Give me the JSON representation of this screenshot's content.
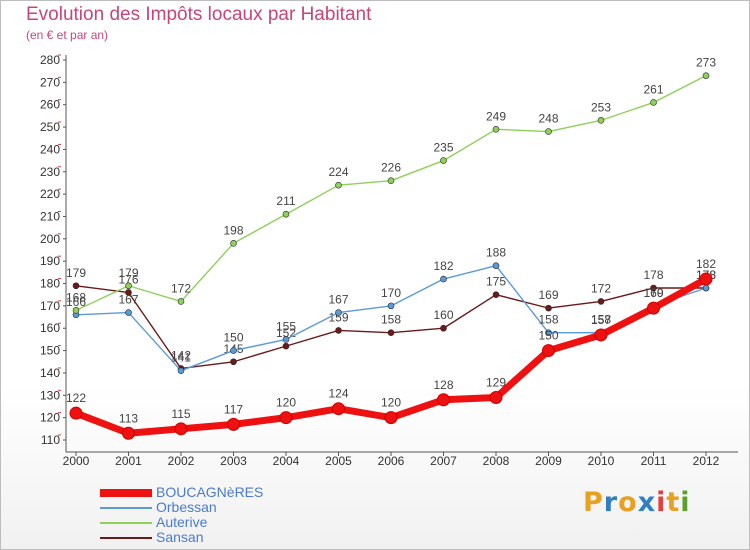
{
  "header": {
    "title": "Evolution des Impôts locaux par Habitant",
    "subtitle": "(en € et par an)"
  },
  "logo": {
    "text": "Proxiti",
    "letters": [
      {
        "ch": "P",
        "color": "#e8a020"
      },
      {
        "ch": "r",
        "color": "#2f7fc1"
      },
      {
        "ch": "o",
        "color": "#e8a020"
      },
      {
        "ch": "x",
        "color": "#2f7fc1"
      },
      {
        "ch": "i",
        "color": "#e04040"
      },
      {
        "ch": "t",
        "color": "#e8a020"
      },
      {
        "ch": "i",
        "color": "#5aa02a"
      }
    ]
  },
  "chart_data": {
    "type": "line",
    "title": "Evolution des Impôts locaux par Habitant",
    "subtitle": "(en € et par an)",
    "xlabel": "",
    "ylabel": "",
    "x": [
      "2000",
      "2001",
      "2002",
      "2003",
      "2004",
      "2005",
      "2006",
      "2007",
      "2008",
      "2009",
      "2010",
      "2011",
      "2012"
    ],
    "ylim": [
      110,
      280
    ],
    "yticks": [
      110,
      120,
      130,
      140,
      150,
      160,
      170,
      180,
      190,
      200,
      210,
      220,
      230,
      240,
      250,
      260,
      270,
      280
    ],
    "grid": false,
    "legend": "bottom-left",
    "series": [
      {
        "name": "BOUCAGNèRES",
        "color": "#ee1111",
        "values": [
          122,
          113,
          115,
          117,
          120,
          124,
          120,
          128,
          129,
          150,
          157,
          169,
          182
        ]
      },
      {
        "name": "Orbessan",
        "color": "#5b9bd5",
        "values": [
          166,
          167,
          141,
          150,
          155,
          167,
          170,
          182,
          188,
          158,
          158,
          170,
          178
        ]
      },
      {
        "name": "Auterive",
        "color": "#8ed05a",
        "values": [
          168,
          179,
          172,
          198,
          211,
          224,
          226,
          235,
          249,
          248,
          253,
          261,
          273
        ]
      },
      {
        "name": "Sansan",
        "color": "#6b1a1a",
        "values": [
          179,
          176,
          142,
          145,
          152,
          159,
          158,
          160,
          175,
          169,
          172,
          178,
          178
        ]
      }
    ]
  }
}
